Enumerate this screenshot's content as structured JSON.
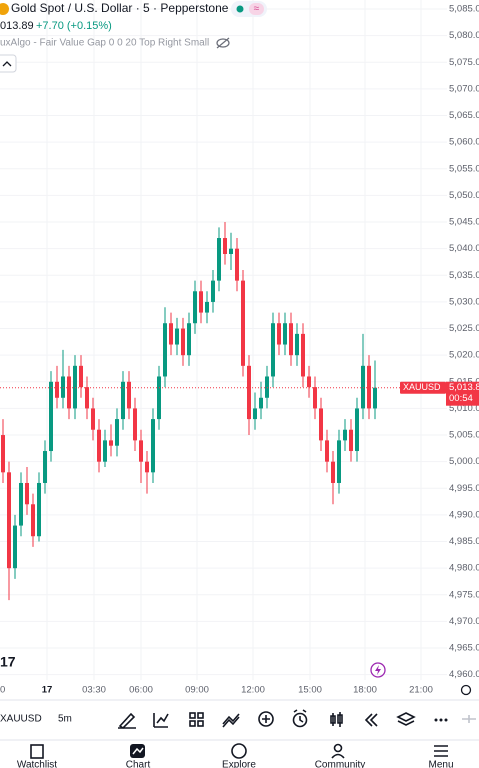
{
  "chart_data": {
    "type": "candlestick",
    "title": "Gold Spot / U.S. Dollar · 5 · Pepperstone",
    "last_price": "013.89",
    "change": "+7.70 (+0.15%)",
    "indicator": "uxAlgo - Fair Value Gap 0 0 20 Top Right Small",
    "symbol_tag": "XAUUSD",
    "price_tag": "5,013.8",
    "countdown": "00:54",
    "up_color": "#089981",
    "down_color": "#f23645",
    "grid": true,
    "open": [
      5005,
      4998,
      4980,
      4988,
      4996,
      4992,
      4986,
      4996,
      5002,
      5015,
      5012,
      5016,
      5010,
      5018,
      5014,
      5010,
      5006,
      5000,
      5004,
      5003,
      5008,
      5015,
      5010,
      5004,
      5000,
      4998,
      5008,
      5016,
      5026,
      5022,
      5025,
      5020,
      5026,
      5032,
      5028,
      5030,
      5034,
      5042,
      5039,
      5040,
      5034,
      5018,
      5008,
      5010,
      5012,
      5016,
      5026,
      5022,
      5026,
      5020,
      5024,
      5016,
      5014,
      5010,
      5004,
      5000,
      4996,
      5004,
      5006,
      5002,
      5010,
      5018,
      5010
    ],
    "high": [
      5008,
      5000,
      4990,
      4998,
      4999,
      4994,
      4998,
      5004,
      5017,
      5018,
      5021,
      5018,
      5020,
      5020,
      5016,
      5012,
      5008,
      5006,
      5007,
      5010,
      5017,
      5017,
      5012,
      5006,
      5002,
      5010,
      5018,
      5029,
      5028,
      5027,
      5027,
      5028,
      5034,
      5034,
      5032,
      5036,
      5044,
      5045,
      5043,
      5042,
      5036,
      5020,
      5013,
      5015,
      5018,
      5028,
      5028,
      5028,
      5028,
      5026,
      5026,
      5018,
      5016,
      5012,
      5006,
      5002,
      5006,
      5008,
      5008,
      5012,
      5024,
      5020,
      5019
    ],
    "low": [
      4996,
      4974,
      4978,
      4986,
      4990,
      4984,
      4985,
      4994,
      5000,
      5010,
      5010,
      5008,
      5008,
      5012,
      5008,
      5004,
      4998,
      4999,
      5001,
      5001,
      5006,
      5008,
      5002,
      4996,
      4994,
      4996,
      5006,
      5014,
      5020,
      5020,
      5018,
      5018,
      5024,
      5026,
      5026,
      5028,
      5032,
      5037,
      5036,
      5032,
      5016,
      5005,
      5006,
      5008,
      5010,
      5014,
      5020,
      5020,
      5018,
      5018,
      5014,
      5012,
      5008,
      5002,
      4998,
      4992,
      4994,
      5002,
      5000,
      5000,
      5008,
      5008,
      5008
    ],
    "close": [
      4998,
      4980,
      4988,
      4996,
      4992,
      4986,
      4996,
      5002,
      5015,
      5012,
      5016,
      5010,
      5018,
      5014,
      5010,
      5006,
      5000,
      5004,
      5003,
      5008,
      5015,
      5010,
      5004,
      5000,
      4998,
      5008,
      5016,
      5026,
      5022,
      5025,
      5020,
      5026,
      5032,
      5028,
      5030,
      5034,
      5042,
      5039,
      5040,
      5034,
      5018,
      5008,
      5010,
      5012,
      5016,
      5026,
      5022,
      5026,
      5020,
      5024,
      5016,
      5014,
      5010,
      5004,
      5000,
      4996,
      5004,
      5006,
      5002,
      5010,
      5018,
      5010,
      5013.89
    ],
    "xticks": [
      "0",
      "17",
      "03:30",
      "06:00",
      "09:00",
      "12:00",
      "15:00",
      "18:00",
      "21:00"
    ],
    "ylim": [
      4959,
      5086.7
    ],
    "yticks": [
      {
        "value": 5085,
        "label": "5,085.0"
      },
      {
        "value": 5080,
        "label": "5,080.0"
      },
      {
        "value": 5075,
        "label": "5,075.0"
      },
      {
        "value": 5070,
        "label": "5,070.0"
      },
      {
        "value": 5065,
        "label": "5,065.0"
      },
      {
        "value": 5060,
        "label": "5,060.0"
      },
      {
        "value": 5055,
        "label": "5,055.0"
      },
      {
        "value": 5050,
        "label": "5,050.0"
      },
      {
        "value": 5045,
        "label": "5,045.0"
      },
      {
        "value": 5040,
        "label": "5,040.0"
      },
      {
        "value": 5035,
        "label": "5,035.0"
      },
      {
        "value": 5030,
        "label": "5,030.0"
      },
      {
        "value": 5025,
        "label": "5,025.0"
      },
      {
        "value": 5020,
        "label": "5,020.0"
      },
      {
        "value": 5015,
        "label": "5,015.0"
      },
      {
        "value": 5010,
        "label": "5,010.0"
      },
      {
        "value": 5005,
        "label": "5,005.0"
      },
      {
        "value": 5000,
        "label": "5,000.0"
      },
      {
        "value": 4995,
        "label": "4,995.0"
      },
      {
        "value": 4990,
        "label": "4,990.0"
      },
      {
        "value": 4985,
        "label": "4,985.0"
      },
      {
        "value": 4980,
        "label": "4,980.0"
      },
      {
        "value": 4975,
        "label": "4,975.0"
      },
      {
        "value": 4970,
        "label": "4,970.0"
      },
      {
        "value": 4965,
        "label": "4,965.0"
      },
      {
        "value": 4960,
        "label": "4,960.0"
      }
    ]
  },
  "toolbar": {
    "symbol": "XAUUSD",
    "interval": "5m"
  },
  "nav": [
    "Watchlist",
    "Chart",
    "Explore",
    "Community",
    "Menu"
  ]
}
